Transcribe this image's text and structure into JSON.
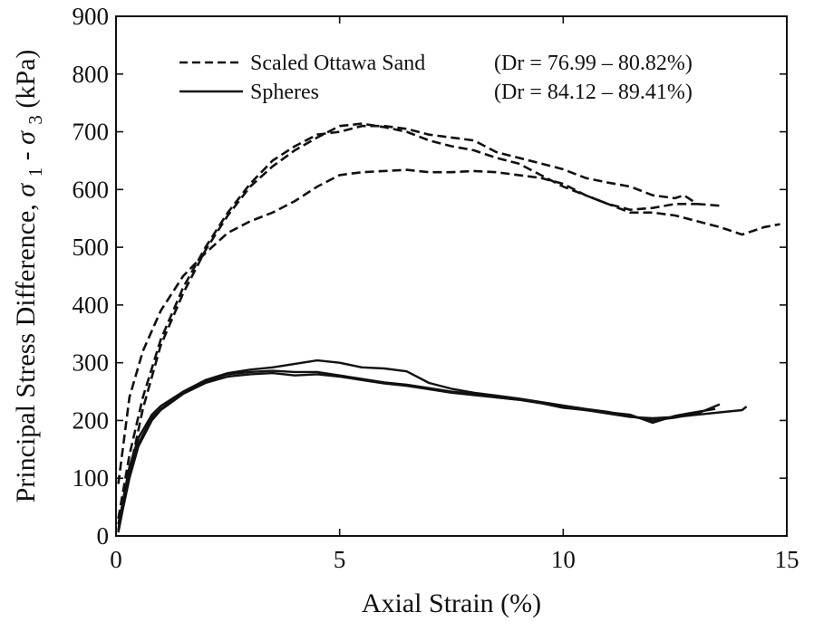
{
  "chart_data": {
    "type": "line",
    "xlabel": "Axial Strain (%)",
    "ylabel": "Principal Stress Difference, σ1 - σ3 (kPa)",
    "ylabel_parts": {
      "prefix": "Principal Stress Difference, ",
      "sym": "σ",
      "sub1": "1",
      "mid": " - ",
      "sub3": "3",
      "unit": " (kPa)"
    },
    "xlim": [
      0,
      15
    ],
    "ylim": [
      0,
      900
    ],
    "xticks": [
      "0",
      "5",
      "10",
      "15"
    ],
    "yticks": [
      "0",
      "100",
      "200",
      "300",
      "400",
      "500",
      "600",
      "700",
      "800",
      "900"
    ],
    "grid": false,
    "legend": {
      "position": "top-left",
      "entries": [
        {
          "label": "Scaled Ottawa Sand",
          "range": "(Dr = 76.99 – 80.82%)",
          "style": "dashed"
        },
        {
          "label": "Spheres",
          "range": "(Dr = 84.12 – 89.41%)",
          "style": "solid"
        }
      ]
    },
    "series": [
      {
        "group": "Scaled Ottawa Sand",
        "style": "dashed",
        "points": [
          [
            0.05,
            90
          ],
          [
            0.3,
            240
          ],
          [
            0.6,
            320
          ],
          [
            1.0,
            390
          ],
          [
            1.5,
            450
          ],
          [
            2.0,
            490
          ],
          [
            2.5,
            525
          ],
          [
            3.0,
            545
          ],
          [
            3.5,
            560
          ],
          [
            4.0,
            580
          ],
          [
            4.5,
            605
          ],
          [
            5.0,
            625
          ],
          [
            5.5,
            630
          ],
          [
            6.0,
            632
          ],
          [
            6.5,
            634
          ],
          [
            7.0,
            630
          ],
          [
            7.5,
            630
          ],
          [
            8.0,
            632
          ],
          [
            8.5,
            630
          ],
          [
            9.0,
            625
          ],
          [
            9.5,
            620
          ],
          [
            10.0,
            610
          ],
          [
            10.5,
            590
          ],
          [
            11.0,
            575
          ],
          [
            11.5,
            560
          ],
          [
            12.0,
            560
          ],
          [
            12.5,
            555
          ],
          [
            13.0,
            545
          ],
          [
            13.5,
            535
          ],
          [
            14.0,
            522
          ],
          [
            14.5,
            535
          ],
          [
            14.85,
            540
          ]
        ]
      },
      {
        "group": "Scaled Ottawa Sand",
        "style": "dashed",
        "points": [
          [
            0.05,
            30
          ],
          [
            0.3,
            140
          ],
          [
            0.6,
            240
          ],
          [
            1.0,
            340
          ],
          [
            1.5,
            430
          ],
          [
            2.0,
            500
          ],
          [
            2.5,
            560
          ],
          [
            3.0,
            610
          ],
          [
            3.5,
            650
          ],
          [
            4.0,
            675
          ],
          [
            4.5,
            695
          ],
          [
            5.0,
            700
          ],
          [
            5.5,
            710
          ],
          [
            6.0,
            710
          ],
          [
            6.5,
            705
          ],
          [
            7.0,
            695
          ],
          [
            7.5,
            690
          ],
          [
            8.0,
            685
          ],
          [
            8.5,
            665
          ],
          [
            9.0,
            655
          ],
          [
            9.5,
            645
          ],
          [
            10.0,
            635
          ],
          [
            10.5,
            620
          ],
          [
            11.0,
            612
          ],
          [
            11.5,
            605
          ],
          [
            12.0,
            590
          ],
          [
            12.5,
            585
          ],
          [
            12.7,
            590
          ],
          [
            13.0,
            575
          ],
          [
            13.5,
            572
          ]
        ]
      },
      {
        "group": "Scaled Ottawa Sand",
        "style": "dashed",
        "points": [
          [
            0.05,
            20
          ],
          [
            0.3,
            110
          ],
          [
            0.6,
            220
          ],
          [
            1.0,
            330
          ],
          [
            1.5,
            420
          ],
          [
            2.0,
            495
          ],
          [
            2.5,
            555
          ],
          [
            3.0,
            605
          ],
          [
            3.5,
            640
          ],
          [
            4.0,
            668
          ],
          [
            4.5,
            690
          ],
          [
            5.0,
            710
          ],
          [
            5.5,
            714
          ],
          [
            6.0,
            708
          ],
          [
            6.5,
            700
          ],
          [
            7.0,
            685
          ],
          [
            7.5,
            675
          ],
          [
            8.0,
            668
          ],
          [
            8.5,
            655
          ],
          [
            9.0,
            645
          ],
          [
            9.5,
            625
          ],
          [
            10.0,
            605
          ],
          [
            10.5,
            590
          ],
          [
            11.0,
            575
          ],
          [
            11.5,
            565
          ],
          [
            12.0,
            568
          ],
          [
            12.5,
            575
          ],
          [
            13.0,
            575
          ]
        ]
      },
      {
        "group": "Spheres",
        "style": "solid",
        "points": [
          [
            0.05,
            10
          ],
          [
            0.15,
            60
          ],
          [
            0.3,
            120
          ],
          [
            0.5,
            170
          ],
          [
            0.8,
            210
          ],
          [
            1.0,
            225
          ],
          [
            1.5,
            250
          ],
          [
            2.0,
            270
          ],
          [
            2.5,
            282
          ],
          [
            3.0,
            288
          ],
          [
            3.5,
            292
          ],
          [
            4.0,
            298
          ],
          [
            4.5,
            304
          ],
          [
            5.0,
            300
          ],
          [
            5.5,
            292
          ],
          [
            6.0,
            290
          ],
          [
            6.5,
            285
          ],
          [
            7.0,
            265
          ],
          [
            7.5,
            255
          ],
          [
            8.0,
            248
          ],
          [
            8.5,
            243
          ],
          [
            9.0,
            238
          ],
          [
            9.5,
            232
          ],
          [
            10.0,
            226
          ],
          [
            10.5,
            220
          ],
          [
            11.0,
            215
          ],
          [
            11.5,
            207
          ],
          [
            12.0,
            200
          ],
          [
            12.5,
            205
          ],
          [
            13.0,
            212
          ],
          [
            13.5,
            228
          ]
        ]
      },
      {
        "group": "Spheres",
        "style": "solid",
        "points": [
          [
            0.05,
            8
          ],
          [
            0.15,
            50
          ],
          [
            0.3,
            110
          ],
          [
            0.5,
            160
          ],
          [
            0.8,
            205
          ],
          [
            1.0,
            220
          ],
          [
            1.5,
            248
          ],
          [
            2.0,
            268
          ],
          [
            2.5,
            280
          ],
          [
            3.0,
            284
          ],
          [
            3.5,
            286
          ],
          [
            4.0,
            284
          ],
          [
            4.5,
            284
          ],
          [
            5.0,
            278
          ],
          [
            5.5,
            272
          ],
          [
            6.0,
            266
          ],
          [
            6.5,
            262
          ],
          [
            7.0,
            256
          ],
          [
            7.5,
            250
          ],
          [
            8.0,
            246
          ],
          [
            8.5,
            240
          ],
          [
            9.0,
            236
          ],
          [
            9.5,
            230
          ],
          [
            10.0,
            224
          ],
          [
            10.5,
            218
          ],
          [
            11.0,
            214
          ],
          [
            11.5,
            210
          ],
          [
            12.0,
            196
          ],
          [
            12.5,
            208
          ],
          [
            13.0,
            215
          ],
          [
            13.4,
            220
          ]
        ]
      },
      {
        "group": "Spheres",
        "style": "solid",
        "points": [
          [
            0.05,
            6
          ],
          [
            0.15,
            45
          ],
          [
            0.3,
            100
          ],
          [
            0.5,
            155
          ],
          [
            0.8,
            200
          ],
          [
            1.0,
            218
          ],
          [
            1.5,
            246
          ],
          [
            2.0,
            265
          ],
          [
            2.5,
            276
          ],
          [
            3.0,
            280
          ],
          [
            3.5,
            282
          ],
          [
            4.0,
            278
          ],
          [
            4.5,
            280
          ],
          [
            5.0,
            276
          ],
          [
            5.5,
            270
          ],
          [
            6.0,
            264
          ],
          [
            6.5,
            260
          ],
          [
            7.0,
            254
          ],
          [
            7.5,
            248
          ],
          [
            8.0,
            244
          ],
          [
            8.5,
            240
          ],
          [
            9.0,
            236
          ],
          [
            9.5,
            230
          ],
          [
            10.0,
            222
          ],
          [
            10.5,
            218
          ],
          [
            11.0,
            212
          ],
          [
            11.5,
            206
          ],
          [
            12.0,
            204
          ],
          [
            12.5,
            206
          ],
          [
            13.0,
            210
          ],
          [
            13.5,
            214
          ],
          [
            14.0,
            218
          ],
          [
            14.1,
            224
          ]
        ]
      }
    ]
  }
}
